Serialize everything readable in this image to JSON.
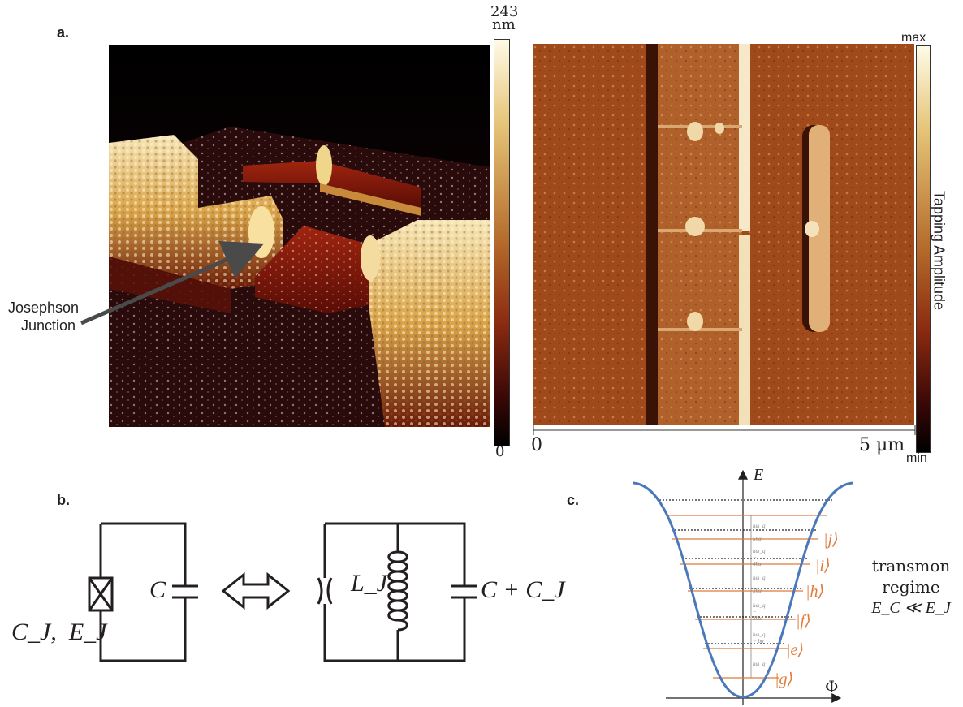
{
  "panels": {
    "a": {
      "label": "a.",
      "afm3d": {
        "colorbar_max": "243",
        "colorbar_unit": "nm",
        "colorbar_min": "0",
        "annotation_line1": "Josephson",
        "annotation_line2": "Junction"
      },
      "afm2d": {
        "colorbar_max": "max",
        "colorbar_min": "min",
        "colorbar_label": "Tapping Amplitude",
        "scale_start": "0",
        "scale_end": "5 μm"
      },
      "colors": {
        "low": "#000000",
        "mid": "#8b2a10",
        "high": "#fffbe8"
      }
    },
    "b": {
      "label": "b.",
      "left_junction_label": "C_J,  E_J",
      "left_cap_label": "C",
      "inductor_label": "L_J",
      "right_cap_label": "C + C_J"
    },
    "c": {
      "label": "c.",
      "energy_axis": "E",
      "flux_axis": "Φ",
      "regime_line1": "transmon",
      "regime_line2": "regime",
      "regime_line3": "E_C ≪ E_J",
      "states": [
        "|g⟩",
        "|e⟩",
        "|f⟩",
        "|h⟩",
        "|i⟩",
        "|j⟩"
      ],
      "transitions": [
        "ħω_q",
        "ħω_q − bα",
        "ħω_q − 2ħα",
        "ħω_q − 3ħα",
        "ħω_q − 4ħα",
        "ħω_q − 5ħα"
      ],
      "colors": {
        "potential": "#4a78b8",
        "levels": "#e07b39",
        "dashed": "#222222"
      }
    }
  }
}
